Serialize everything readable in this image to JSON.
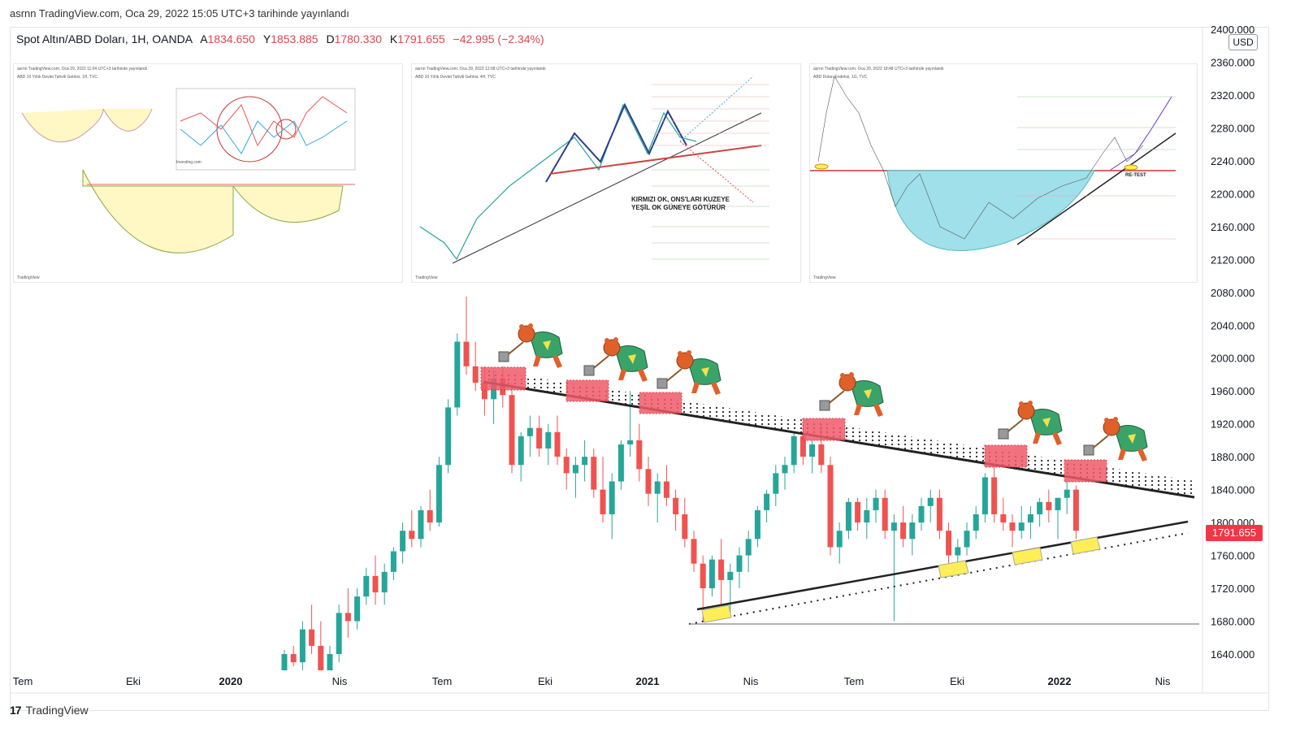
{
  "header": {
    "published": "asrnn TradingView.com, Oca 29, 2022 15:05 UTC+3 tarihinde yayınlandı"
  },
  "legend": {
    "symbol": "Spot Altın/ABD Doları, 1H, OANDA",
    "open_label": "A",
    "open": "1834.650",
    "high_label": "Y",
    "high": "1853.885",
    "low_label": "D",
    "low": "1780.330",
    "close_label": "K",
    "close": "1791.655",
    "change": "−42.995 (−2.34%)"
  },
  "currency": "USD",
  "last_price": "1791.655",
  "colors": {
    "up": "#26a69a",
    "down": "#ef5350",
    "resistance_zone": "#f05a6a",
    "support_zone": "#ffee58",
    "price_tag": "#f23645"
  },
  "insets": [
    {
      "caption": "asrnn TradingView.com, Oca 29, 2022 11:04 UTC+3 tarihinde yayınlandı",
      "subcaption": "ABD 10 Yıllık Devlet Tahvili Getirisi, 1H, TVC",
      "inner_caption": "Investing.com",
      "logo": "TradingView"
    },
    {
      "caption": "asrnn TradingView.com, Oca 29, 2022 12:08 UTC+3 tarihinde yayınlandı",
      "subcaption": "ABD 10 Yıllık Devlet Tahvili Getirisi, 4H, TVC",
      "note": "KIRMIZI OK, ONS'LARI KUZEYE\nYEŞİL OK GÜNEYE GÖTÜRÜR",
      "logo": "TradingView"
    },
    {
      "caption": "asrnn TradingView.com, Oca 20, 2022 18:48 UTC+3 tarihinde yayınlandı",
      "subcaption": "ABD Doları Endeksi, 1G, TVC",
      "retest": "RE-TEST",
      "logo": "TradingView"
    }
  ],
  "footer": {
    "brand": "TradingView"
  },
  "chart_data": {
    "type": "candlestick",
    "symbol": "XAUUSD",
    "ylim": [
      1620,
      2400
    ],
    "y_ticks": [
      2400,
      2360,
      2320,
      2280,
      2240,
      2200,
      2160,
      2120,
      2080,
      2040,
      2000,
      1960,
      1920,
      1880,
      1840,
      1800,
      1760,
      1720,
      1680,
      1640
    ],
    "y_tick_labels": [
      "2400.000",
      "2360.000",
      "2320.000",
      "2280.000",
      "2240.000",
      "2200.000",
      "2160.000",
      "2120.000",
      "2080.000",
      "2040.000",
      "2000.000",
      "1960.000",
      "1920.000",
      "1880.000",
      "1840.000",
      "1800.000",
      "1760.000",
      "1720.000",
      "1680.000",
      "1640.000"
    ],
    "x_tick_labels": [
      "Tem",
      "Eki",
      "2020",
      "Nis",
      "Tem",
      "Eki",
      "2021",
      "Nis",
      "Tem",
      "Eki",
      "2022",
      "Nis"
    ],
    "candles": [
      [
        1620,
        1645,
        1600,
        1640
      ],
      [
        1640,
        1650,
        1625,
        1630
      ],
      [
        1630,
        1680,
        1620,
        1670
      ],
      [
        1670,
        1700,
        1640,
        1650
      ],
      [
        1650,
        1680,
        1600,
        1620
      ],
      [
        1620,
        1650,
        1600,
        1640
      ],
      [
        1640,
        1700,
        1630,
        1690
      ],
      [
        1690,
        1720,
        1660,
        1680
      ],
      [
        1680,
        1720,
        1670,
        1710
      ],
      [
        1710,
        1745,
        1700,
        1735
      ],
      [
        1735,
        1760,
        1700,
        1715
      ],
      [
        1715,
        1750,
        1700,
        1740
      ],
      [
        1740,
        1770,
        1730,
        1765
      ],
      [
        1765,
        1800,
        1750,
        1790
      ],
      [
        1790,
        1815,
        1770,
        1780
      ],
      [
        1780,
        1820,
        1770,
        1815
      ],
      [
        1815,
        1840,
        1790,
        1800
      ],
      [
        1800,
        1880,
        1795,
        1870
      ],
      [
        1870,
        1950,
        1860,
        1940
      ],
      [
        1940,
        2030,
        1930,
        2020
      ],
      [
        2020,
        2075,
        1980,
        1990
      ],
      [
        1990,
        2020,
        1960,
        1970
      ],
      [
        1970,
        1990,
        1930,
        1950
      ],
      [
        1950,
        1985,
        1920,
        1975
      ],
      [
        1975,
        1990,
        1940,
        1955
      ],
      [
        1955,
        1970,
        1860,
        1870
      ],
      [
        1870,
        1910,
        1850,
        1905
      ],
      [
        1905,
        1930,
        1880,
        1915
      ],
      [
        1915,
        1930,
        1880,
        1890
      ],
      [
        1890,
        1920,
        1870,
        1910
      ],
      [
        1910,
        1930,
        1870,
        1880
      ],
      [
        1880,
        1890,
        1840,
        1860
      ],
      [
        1860,
        1880,
        1830,
        1870
      ],
      [
        1870,
        1900,
        1850,
        1880
      ],
      [
        1880,
        1890,
        1830,
        1840
      ],
      [
        1840,
        1880,
        1800,
        1810
      ],
      [
        1810,
        1860,
        1780,
        1850
      ],
      [
        1850,
        1900,
        1840,
        1895
      ],
      [
        1895,
        1960,
        1880,
        1900
      ],
      [
        1900,
        1920,
        1850,
        1865
      ],
      [
        1865,
        1880,
        1820,
        1835
      ],
      [
        1835,
        1860,
        1800,
        1850
      ],
      [
        1850,
        1870,
        1820,
        1830
      ],
      [
        1830,
        1840,
        1790,
        1810
      ],
      [
        1810,
        1830,
        1770,
        1780
      ],
      [
        1780,
        1790,
        1740,
        1750
      ],
      [
        1750,
        1760,
        1680,
        1720
      ],
      [
        1720,
        1760,
        1710,
        1755
      ],
      [
        1755,
        1780,
        1700,
        1730
      ],
      [
        1730,
        1750,
        1690,
        1740
      ],
      [
        1740,
        1770,
        1720,
        1760
      ],
      [
        1760,
        1790,
        1740,
        1780
      ],
      [
        1780,
        1820,
        1770,
        1815
      ],
      [
        1815,
        1840,
        1800,
        1835
      ],
      [
        1835,
        1870,
        1820,
        1860
      ],
      [
        1860,
        1880,
        1840,
        1870
      ],
      [
        1870,
        1910,
        1860,
        1905
      ],
      [
        1905,
        1920,
        1870,
        1880
      ],
      [
        1880,
        1900,
        1860,
        1895
      ],
      [
        1895,
        1920,
        1860,
        1870
      ],
      [
        1870,
        1880,
        1760,
        1770
      ],
      [
        1770,
        1800,
        1750,
        1790
      ],
      [
        1790,
        1830,
        1780,
        1825
      ],
      [
        1825,
        1830,
        1790,
        1800
      ],
      [
        1800,
        1830,
        1780,
        1815
      ],
      [
        1815,
        1840,
        1800,
        1830
      ],
      [
        1830,
        1840,
        1780,
        1790
      ],
      [
        1790,
        1810,
        1680,
        1800
      ],
      [
        1800,
        1820,
        1770,
        1780
      ],
      [
        1780,
        1810,
        1760,
        1800
      ],
      [
        1800,
        1830,
        1790,
        1820
      ],
      [
        1820,
        1840,
        1800,
        1830
      ],
      [
        1830,
        1840,
        1780,
        1790
      ],
      [
        1790,
        1800,
        1750,
        1760
      ],
      [
        1760,
        1780,
        1740,
        1770
      ],
      [
        1770,
        1800,
        1760,
        1790
      ],
      [
        1790,
        1820,
        1780,
        1810
      ],
      [
        1810,
        1860,
        1800,
        1855
      ],
      [
        1855,
        1870,
        1800,
        1810
      ],
      [
        1810,
        1830,
        1790,
        1800
      ],
      [
        1800,
        1810,
        1770,
        1790
      ],
      [
        1790,
        1820,
        1780,
        1800
      ],
      [
        1800,
        1820,
        1780,
        1810
      ],
      [
        1810,
        1830,
        1795,
        1825
      ],
      [
        1825,
        1840,
        1800,
        1815
      ],
      [
        1815,
        1830,
        1780,
        1830
      ],
      [
        1830,
        1850,
        1810,
        1840
      ],
      [
        1840,
        1845,
        1780,
        1790
      ]
    ]
  }
}
